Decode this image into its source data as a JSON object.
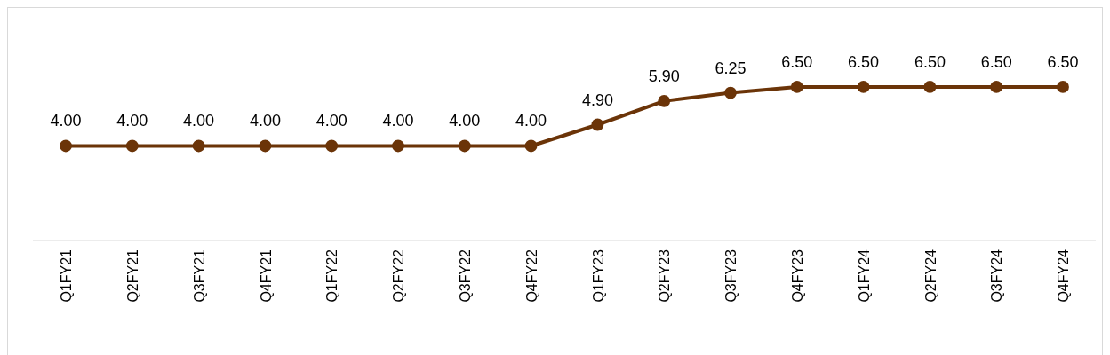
{
  "chart_data": {
    "type": "line",
    "categories": [
      "Q1FY21",
      "Q2FY21",
      "Q3FY21",
      "Q4FY21",
      "Q1FY22",
      "Q2FY22",
      "Q3FY22",
      "Q4FY22",
      "Q1FY23",
      "Q2FY23",
      "Q3FY23",
      "Q4FY23",
      "Q1FY24",
      "Q2FY24",
      "Q3FY24",
      "Q4FY24"
    ],
    "series": [
      {
        "color": "#6b3408",
        "values": [
          4.0,
          4.0,
          4.0,
          4.0,
          4.0,
          4.0,
          4.0,
          4.0,
          4.9,
          5.9,
          6.25,
          6.5,
          6.5,
          6.5,
          6.5,
          6.5
        ],
        "value_labels": [
          "4.00",
          "4.00",
          "4.00",
          "4.00",
          "4.00",
          "4.00",
          "4.00",
          "4.00",
          "4.90",
          "5.90",
          "6.25",
          "6.50",
          "6.50",
          "6.50",
          "6.50",
          "6.50"
        ]
      }
    ],
    "marker": "circle",
    "line_style": "solid",
    "tick_labels": "x"
  }
}
